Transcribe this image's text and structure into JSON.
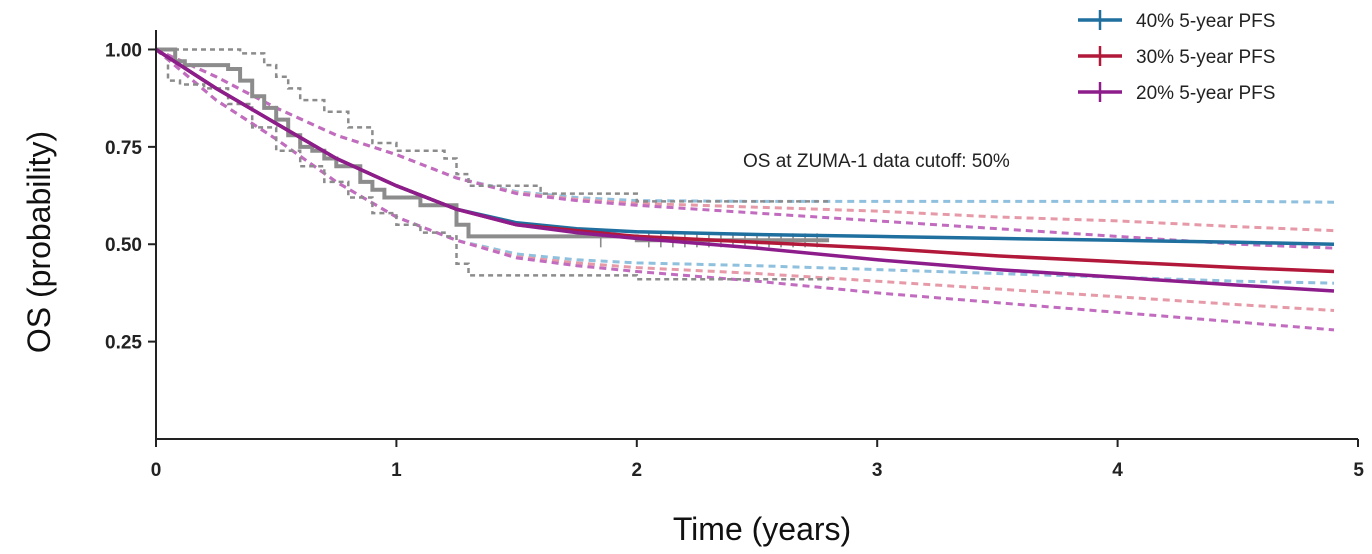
{
  "chart_data": {
    "type": "line",
    "title": "",
    "xlabel": "Time (years)",
    "ylabel": "OS (probability)",
    "xlim": [
      0,
      5
    ],
    "ylim": [
      0,
      1.05
    ],
    "x_ticks": [
      0,
      1,
      2,
      3,
      4,
      5
    ],
    "x_tick_labels": [
      "0",
      "1",
      "2",
      "3",
      "4",
      "5"
    ],
    "y_ticks": [
      0.25,
      0.5,
      0.75,
      1.0
    ],
    "y_tick_labels": [
      "0.25",
      "0.50",
      "0.75",
      "1.00"
    ],
    "grid": false,
    "legend_position": "top-right",
    "annotation": "OS at ZUMA-1 data cutoff: 50%",
    "colors": {
      "observed": "#8c8c8c",
      "pfs40": "#1f6f9f",
      "pfs30": "#b2183a",
      "pfs20": "#8e1d8c",
      "pfs40_ci": "#8fc0dd",
      "pfs30_ci": "#e69aa8",
      "pfs20_ci": "#c26cc0"
    },
    "observed_km": {
      "x": [
        0,
        0.08,
        0.12,
        0.25,
        0.3,
        0.35,
        0.4,
        0.45,
        0.5,
        0.55,
        0.6,
        0.65,
        0.7,
        0.75,
        0.8,
        0.85,
        0.9,
        0.95,
        1.0,
        1.1,
        1.2,
        1.25,
        1.3,
        1.5,
        1.8,
        2.0,
        2.3,
        2.5,
        2.8
      ],
      "y": [
        1.0,
        0.97,
        0.96,
        0.96,
        0.95,
        0.92,
        0.88,
        0.85,
        0.82,
        0.78,
        0.75,
        0.74,
        0.72,
        0.7,
        0.7,
        0.66,
        0.64,
        0.62,
        0.62,
        0.6,
        0.6,
        0.55,
        0.52,
        0.52,
        0.52,
        0.51,
        0.51,
        0.51,
        0.51
      ]
    },
    "observed_km_upper": {
      "x": [
        0,
        0.05,
        0.3,
        0.35,
        0.45,
        0.5,
        0.55,
        0.6,
        0.7,
        0.8,
        0.9,
        1.0,
        1.2,
        1.25,
        1.3,
        1.6,
        2.0,
        2.5,
        2.8
      ],
      "y": [
        1.0,
        1.0,
        1.0,
        0.99,
        0.96,
        0.93,
        0.9,
        0.87,
        0.84,
        0.8,
        0.76,
        0.74,
        0.72,
        0.68,
        0.65,
        0.63,
        0.61,
        0.61,
        0.61
      ]
    },
    "observed_km_lower": {
      "x": [
        0,
        0.05,
        0.1,
        0.2,
        0.3,
        0.4,
        0.5,
        0.6,
        0.7,
        0.8,
        0.9,
        1.0,
        1.1,
        1.2,
        1.25,
        1.3,
        1.6,
        2.0,
        2.5,
        2.8
      ],
      "y": [
        1.0,
        0.92,
        0.91,
        0.9,
        0.86,
        0.8,
        0.74,
        0.7,
        0.66,
        0.62,
        0.58,
        0.55,
        0.53,
        0.52,
        0.45,
        0.42,
        0.42,
        0.41,
        0.41,
        0.41
      ]
    },
    "censor_marks": {
      "x": [
        1.85,
        2.05,
        2.1,
        2.15,
        2.2,
        2.25,
        2.3,
        2.35,
        2.4,
        2.45,
        2.5,
        2.55,
        2.6,
        2.65,
        2.7,
        2.75
      ],
      "y": [
        0.51,
        0.51,
        0.51,
        0.51,
        0.51,
        0.51,
        0.51,
        0.51,
        0.51,
        0.51,
        0.51,
        0.51,
        0.51,
        0.51,
        0.51,
        0.51
      ]
    },
    "series": [
      {
        "name": "40% 5-year PFS",
        "x": [
          0,
          0.25,
          0.5,
          0.75,
          1.0,
          1.25,
          1.5,
          1.75,
          2.0,
          2.5,
          3.0,
          3.5,
          4.0,
          4.5,
          4.9
        ],
        "y": [
          1.0,
          0.9,
          0.81,
          0.72,
          0.65,
          0.59,
          0.555,
          0.54,
          0.532,
          0.525,
          0.52,
          0.515,
          0.51,
          0.505,
          0.5
        ],
        "upper": [
          1.0,
          0.93,
          0.85,
          0.78,
          0.73,
          0.67,
          0.635,
          0.62,
          0.612,
          0.61,
          0.61,
          0.61,
          0.61,
          0.61,
          0.608
        ],
        "lower": [
          1.0,
          0.87,
          0.77,
          0.66,
          0.57,
          0.51,
          0.475,
          0.46,
          0.452,
          0.445,
          0.435,
          0.425,
          0.415,
          0.405,
          0.4
        ]
      },
      {
        "name": "30% 5-year PFS",
        "x": [
          0,
          0.25,
          0.5,
          0.75,
          1.0,
          1.25,
          1.5,
          1.75,
          2.0,
          2.5,
          3.0,
          3.5,
          4.0,
          4.5,
          4.9
        ],
        "y": [
          1.0,
          0.9,
          0.81,
          0.72,
          0.65,
          0.59,
          0.55,
          0.535,
          0.52,
          0.505,
          0.49,
          0.47,
          0.455,
          0.44,
          0.43
        ],
        "upper": [
          1.0,
          0.93,
          0.85,
          0.78,
          0.73,
          0.67,
          0.632,
          0.615,
          0.605,
          0.595,
          0.585,
          0.57,
          0.56,
          0.545,
          0.535
        ],
        "lower": [
          1.0,
          0.87,
          0.77,
          0.66,
          0.57,
          0.51,
          0.468,
          0.452,
          0.44,
          0.425,
          0.405,
          0.385,
          0.365,
          0.345,
          0.33
        ]
      },
      {
        "name": "20% 5-year PFS",
        "x": [
          0,
          0.25,
          0.5,
          0.75,
          1.0,
          1.25,
          1.5,
          1.75,
          2.0,
          2.5,
          3.0,
          3.5,
          4.0,
          4.5,
          4.9
        ],
        "y": [
          1.0,
          0.9,
          0.81,
          0.72,
          0.65,
          0.59,
          0.55,
          0.53,
          0.515,
          0.49,
          0.46,
          0.435,
          0.415,
          0.395,
          0.38
        ],
        "upper": [
          1.0,
          0.93,
          0.85,
          0.78,
          0.73,
          0.67,
          0.63,
          0.612,
          0.6,
          0.58,
          0.56,
          0.54,
          0.52,
          0.5,
          0.49
        ],
        "lower": [
          1.0,
          0.87,
          0.77,
          0.66,
          0.57,
          0.51,
          0.465,
          0.445,
          0.43,
          0.405,
          0.375,
          0.35,
          0.325,
          0.3,
          0.28
        ]
      }
    ]
  }
}
